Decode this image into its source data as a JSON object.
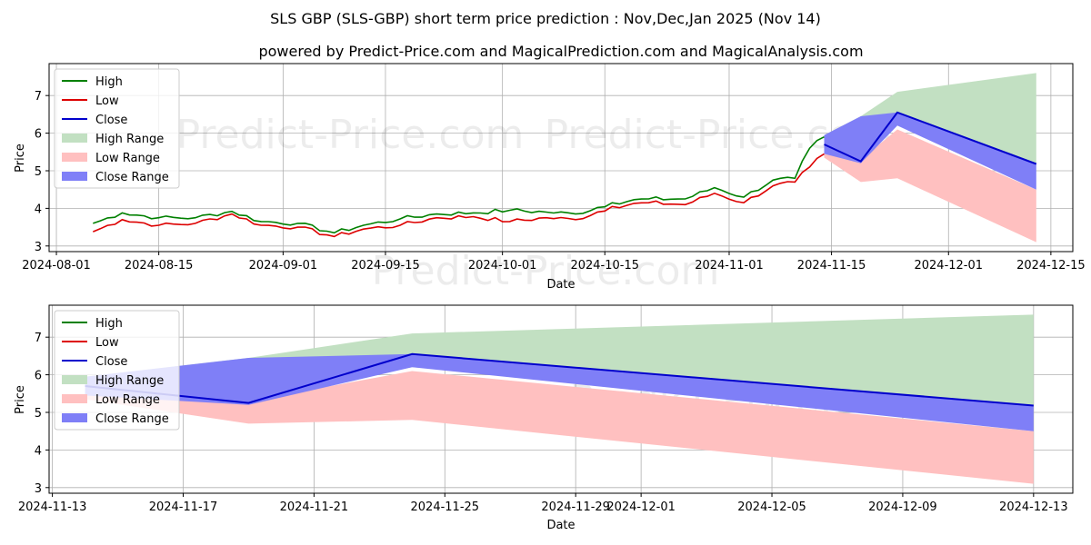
{
  "titles": {
    "main": "SLS GBP (SLS-GBP) short term price prediction : Nov,Dec,Jan 2025 (Nov 14)",
    "sub": "powered by Predict-Price.com and MagicalPrediction.com and MagicalAnalysis.com"
  },
  "watermark": "Predict-Price.com",
  "colors": {
    "high": "#008000",
    "low": "#dd0000",
    "close": "#0000cc",
    "high_range": "#c2e0c2",
    "low_range": "#ffc0c0",
    "close_range": "#7f7ff7"
  },
  "chart_data": [
    {
      "type": "line",
      "id": "top",
      "xlabel": "Date",
      "ylabel": "Price",
      "x_range": [
        "2024-07-31",
        "2024-12-18"
      ],
      "ylim": [
        2.85,
        7.85
      ],
      "x_ticks": [
        "2024-08-01",
        "2024-08-15",
        "2024-09-01",
        "2024-09-15",
        "2024-10-01",
        "2024-10-15",
        "2024-11-01",
        "2024-11-15",
        "2024-12-01",
        "2024-12-15"
      ],
      "y_ticks": [
        3,
        4,
        5,
        6,
        7
      ],
      "legend": [
        "High",
        "Low",
        "Close",
        "High Range",
        "Low Range",
        "Close Range"
      ],
      "legend_position": "top-left",
      "history_dates": [
        "2024-08-06",
        "2024-08-10",
        "2024-08-15",
        "2024-08-20",
        "2024-08-25",
        "2024-08-29",
        "2024-09-03",
        "2024-09-08",
        "2024-09-12",
        "2024-09-17",
        "2024-09-22",
        "2024-09-27",
        "2024-10-02",
        "2024-10-07",
        "2024-10-11",
        "2024-10-16",
        "2024-10-21",
        "2024-10-26",
        "2024-10-30",
        "2024-11-03",
        "2024-11-07",
        "2024-11-10",
        "2024-11-12",
        "2024-11-14"
      ],
      "series": [
        {
          "name": "High",
          "values": [
            3.6,
            3.88,
            3.75,
            3.75,
            3.92,
            3.65,
            3.6,
            3.35,
            3.55,
            3.72,
            3.85,
            3.88,
            3.95,
            3.9,
            3.85,
            4.15,
            4.25,
            4.25,
            4.55,
            4.3,
            4.75,
            4.8,
            5.6,
            5.9
          ]
        },
        {
          "name": "Low",
          "values": [
            3.38,
            3.7,
            3.55,
            3.6,
            3.85,
            3.55,
            3.5,
            3.25,
            3.45,
            3.55,
            3.75,
            3.78,
            3.65,
            3.75,
            3.7,
            4.05,
            4.15,
            4.1,
            4.4,
            4.15,
            4.6,
            4.7,
            5.1,
            5.45
          ]
        }
      ],
      "forecast_dates": [
        "2024-11-14",
        "2024-11-19",
        "2024-11-24",
        "2024-12-13"
      ],
      "forecast": {
        "high_range": {
          "upper": [
            5.95,
            6.45,
            7.1,
            7.6
          ],
          "lower": [
            5.6,
            5.35,
            6.2,
            5.2
          ]
        },
        "low_range": {
          "upper": [
            5.45,
            5.3,
            6.1,
            4.5
          ],
          "lower": [
            5.35,
            4.7,
            4.8,
            3.1
          ]
        },
        "close_range": {
          "upper": [
            5.95,
            6.45,
            6.55,
            5.2
          ],
          "lower": [
            5.45,
            5.2,
            6.2,
            4.5
          ]
        },
        "close": [
          5.7,
          5.25,
          6.55,
          5.18
        ]
      }
    },
    {
      "type": "line",
      "id": "bottom",
      "xlabel": "Date",
      "ylabel": "Price",
      "x_range": [
        "2024-11-12.9",
        "2024-12-14.2"
      ],
      "ylim": [
        2.85,
        7.85
      ],
      "x_ticks": [
        "2024-11-13",
        "2024-11-17",
        "2024-11-21",
        "2024-11-25",
        "2024-11-29",
        "2024-12-01",
        "2024-12-05",
        "2024-12-09",
        "2024-12-13"
      ],
      "y_ticks": [
        3,
        4,
        5,
        6,
        7
      ],
      "legend": [
        "High",
        "Low",
        "Close",
        "High Range",
        "Low Range",
        "Close Range"
      ],
      "legend_position": "top-left"
    }
  ]
}
